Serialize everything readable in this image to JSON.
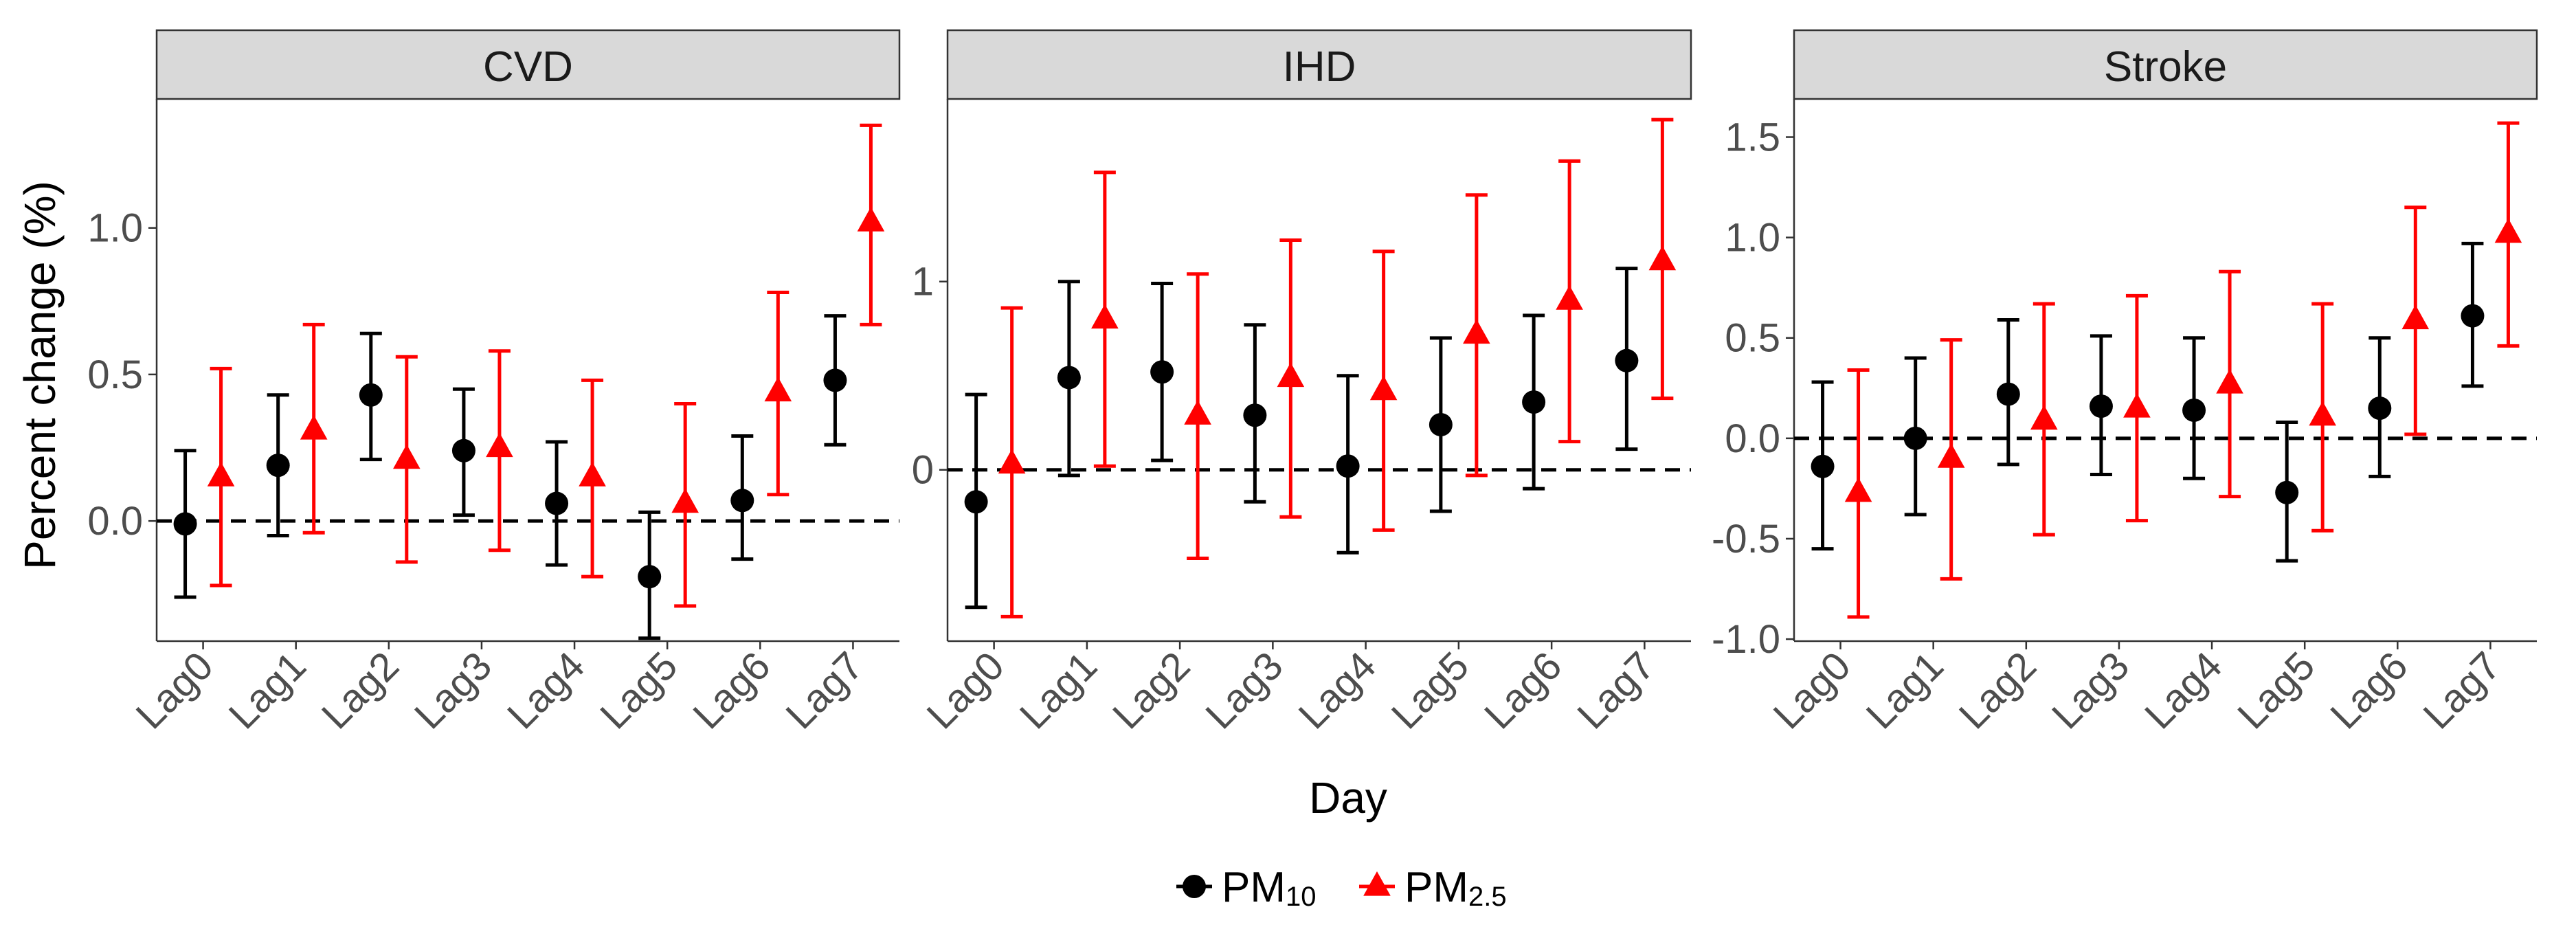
{
  "chart_data": {
    "type": "errorbar",
    "xlabel": "Day",
    "ylabel": "Percent change (%)",
    "categories": [
      "Lag0",
      "Lag1",
      "Lag2",
      "Lag3",
      "Lag4",
      "Lag5",
      "Lag6",
      "Lag7"
    ],
    "reference_line": 0,
    "series_styles": {
      "pm10": {
        "color": "#000000",
        "marker": "circle"
      },
      "pm25": {
        "color": "#ff0000",
        "marker": "triangle"
      }
    },
    "legend": {
      "placement": "bottom",
      "items": [
        {
          "key": "pm10",
          "base": "PM",
          "sub": "10"
        },
        {
          "key": "pm25",
          "base": "PM",
          "sub": "2.5"
        }
      ]
    },
    "panels": [
      {
        "title": "CVD",
        "ylim": [
          -0.41,
          1.44
        ],
        "yticks": [
          0.0,
          0.5,
          1.0
        ],
        "ytick_labels": [
          "0.0",
          "0.5",
          "1.0"
        ],
        "series": [
          {
            "key": "pm10",
            "name": "PM10",
            "values": [
              -0.01,
              0.19,
              0.43,
              0.24,
              0.06,
              -0.19,
              0.07,
              0.48
            ],
            "lower": [
              -0.26,
              -0.05,
              0.21,
              0.02,
              -0.15,
              -0.4,
              -0.13,
              0.26
            ],
            "upper": [
              0.24,
              0.43,
              0.64,
              0.45,
              0.27,
              0.03,
              0.29,
              0.7
            ]
          },
          {
            "key": "pm25",
            "name": "PM2.5",
            "values": [
              0.15,
              0.31,
              0.21,
              0.25,
              0.15,
              0.06,
              0.44,
              1.02
            ],
            "lower": [
              -0.22,
              -0.04,
              -0.14,
              -0.1,
              -0.19,
              -0.29,
              0.09,
              0.67
            ],
            "upper": [
              0.52,
              0.67,
              0.56,
              0.58,
              0.48,
              0.4,
              0.78,
              1.35
            ]
          }
        ]
      },
      {
        "title": "IHD",
        "ylim": [
          -0.91,
          1.97
        ],
        "yticks": [
          0,
          1
        ],
        "ytick_labels": [
          "0",
          "1"
        ],
        "series": [
          {
            "key": "pm10",
            "name": "PM10",
            "values": [
              -0.17,
              0.49,
              0.52,
              0.29,
              0.02,
              0.24,
              0.36,
              0.58
            ],
            "lower": [
              -0.73,
              -0.03,
              0.05,
              -0.17,
              -0.44,
              -0.22,
              -0.1,
              0.11
            ],
            "upper": [
              0.4,
              1.0,
              0.99,
              0.77,
              0.5,
              0.7,
              0.82,
              1.07
            ]
          },
          {
            "key": "pm25",
            "name": "PM2.5",
            "values": [
              0.03,
              0.8,
              0.29,
              0.49,
              0.42,
              0.72,
              0.9,
              1.11
            ],
            "lower": [
              -0.78,
              0.02,
              -0.47,
              -0.25,
              -0.32,
              -0.03,
              0.15,
              0.38
            ],
            "upper": [
              0.86,
              1.58,
              1.04,
              1.22,
              1.16,
              1.46,
              1.64,
              1.86
            ]
          }
        ]
      },
      {
        "title": "Stroke",
        "ylim": [
          -1.01,
          1.69
        ],
        "yticks": [
          -1.0,
          -0.5,
          0.0,
          0.5,
          1.0,
          1.5
        ],
        "ytick_labels": [
          "-1.0",
          "-0.5",
          "0.0",
          "0.5",
          "1.0",
          "1.5"
        ],
        "series": [
          {
            "key": "pm10",
            "name": "PM10",
            "values": [
              -0.14,
              0.0,
              0.22,
              0.16,
              0.14,
              -0.27,
              0.15,
              0.61
            ],
            "lower": [
              -0.55,
              -0.38,
              -0.13,
              -0.18,
              -0.2,
              -0.61,
              -0.19,
              0.26
            ],
            "upper": [
              0.28,
              0.4,
              0.59,
              0.51,
              0.5,
              0.08,
              0.5,
              0.97
            ]
          },
          {
            "key": "pm25",
            "name": "PM2.5",
            "values": [
              -0.27,
              -0.1,
              0.09,
              0.15,
              0.27,
              0.11,
              0.59,
              1.02
            ],
            "lower": [
              -0.89,
              -0.7,
              -0.48,
              -0.41,
              -0.29,
              -0.46,
              0.02,
              0.46
            ],
            "upper": [
              0.34,
              0.49,
              0.67,
              0.71,
              0.83,
              0.67,
              1.15,
              1.57
            ]
          }
        ]
      }
    ]
  }
}
